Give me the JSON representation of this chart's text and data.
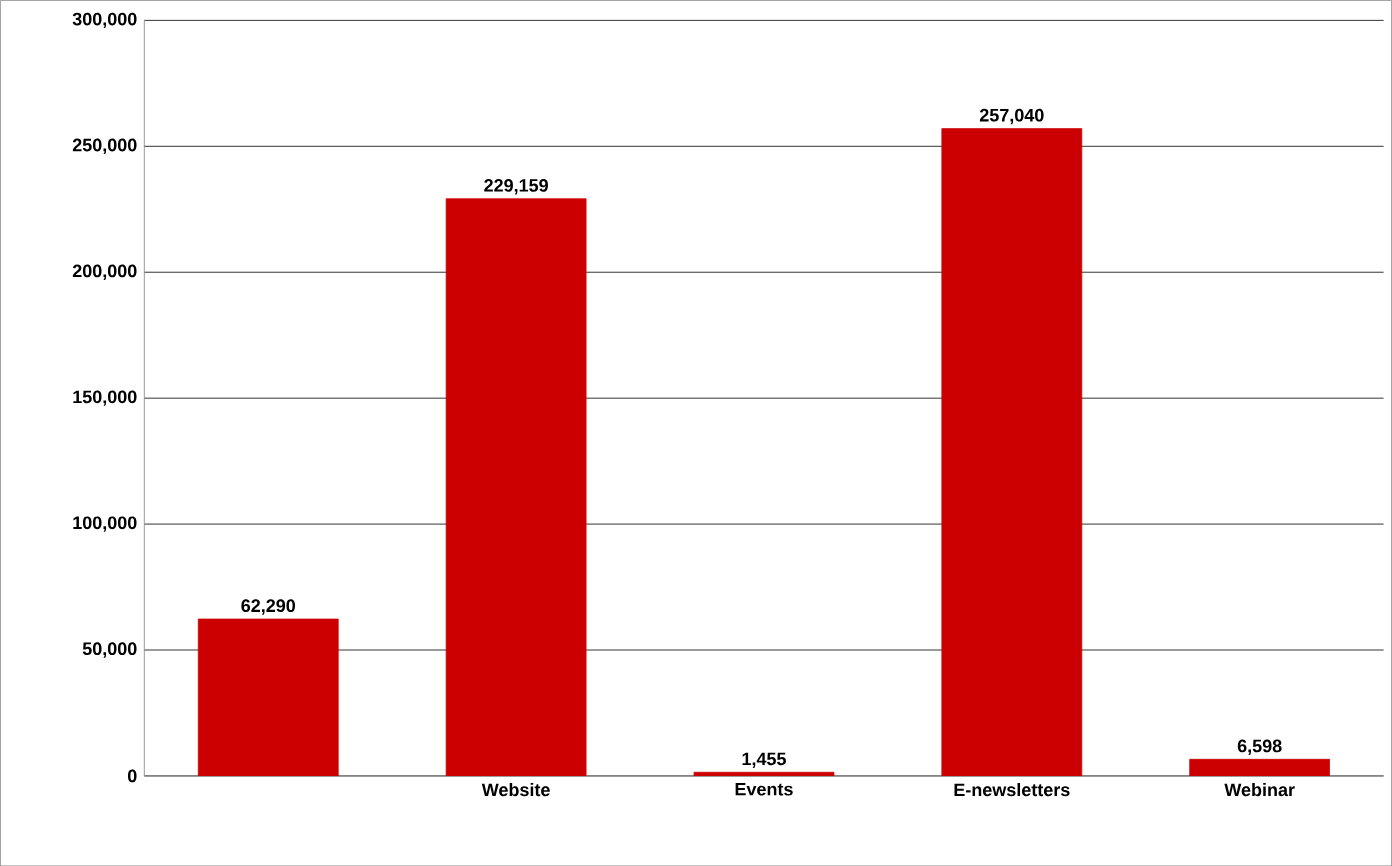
{
  "chart_data": {
    "type": "bar",
    "categories": [
      null,
      "Website",
      "Events",
      "E-newsletters",
      "Webinar"
    ],
    "values": [
      62290,
      229159,
      1455,
      257040,
      6598
    ],
    "value_labels": [
      "62,290",
      "229,159",
      "1,455",
      "257,040",
      "6,598"
    ],
    "color": "#cc0000",
    "grid": "y",
    "ylim": [
      0,
      300000
    ],
    "yticks": [
      {
        "value": 0,
        "label": "0"
      },
      {
        "value": 50000,
        "label": "50,000"
      },
      {
        "value": 100000,
        "label": "100,000"
      },
      {
        "value": 150000,
        "label": "150,000"
      },
      {
        "value": 200000,
        "label": "200,000"
      },
      {
        "value": 250000,
        "label": "250,000"
      },
      {
        "value": 300000,
        "label": "300,000"
      }
    ]
  }
}
